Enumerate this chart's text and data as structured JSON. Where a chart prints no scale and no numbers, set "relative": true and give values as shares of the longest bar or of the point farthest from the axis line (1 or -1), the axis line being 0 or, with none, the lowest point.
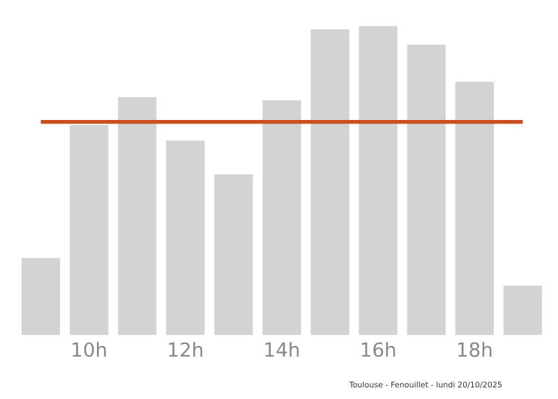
{
  "chart_data": {
    "type": "bar",
    "relative": true,
    "categories": [
      null,
      "10h",
      null,
      "12h",
      null,
      "14h",
      null,
      "16h",
      null,
      "18h",
      null
    ],
    "values": [
      0.25,
      0.68,
      0.77,
      0.63,
      0.52,
      0.76,
      0.99,
      1,
      0.94,
      0.82,
      0.16
    ],
    "color": "#d3d3d5",
    "ref_lines": [
      {
        "axis": "y",
        "value": 0.69,
        "color": "#c8501e"
      }
    ],
    "annotations": [
      "Toulouse - Fenouillet - lundi 20/10/2025"
    ],
    "grid": false,
    "legend": false
  }
}
